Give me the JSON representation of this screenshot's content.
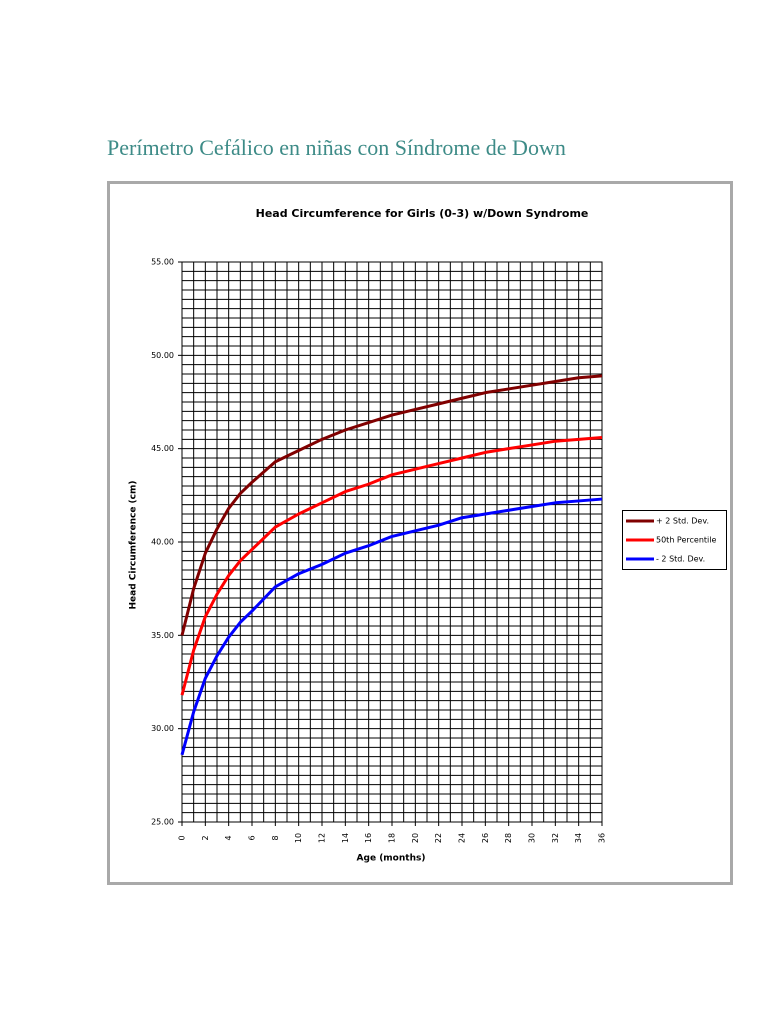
{
  "heading": "Perímetro Cefálico en niñas con Síndrome de Down",
  "chart_data": {
    "type": "line",
    "title": "Head Circumference for Girls (0-3) w/Down Syndrome",
    "x_label": "Age (months)",
    "y_label": "Head Circumference (cm)",
    "x": [
      0,
      1,
      2,
      3,
      4,
      5,
      6,
      8,
      10,
      12,
      14,
      16,
      18,
      20,
      22,
      24,
      26,
      28,
      30,
      32,
      34,
      36
    ],
    "series": [
      {
        "name": "+ 2 Std. Dev.",
        "color": "#800000",
        "values": [
          35.0,
          37.5,
          39.4,
          40.7,
          41.8,
          42.6,
          43.2,
          44.3,
          44.9,
          45.5,
          46.0,
          46.4,
          46.8,
          47.1,
          47.4,
          47.7,
          48.0,
          48.2,
          48.4,
          48.6,
          48.8,
          48.9
        ]
      },
      {
        "name": "50th Percentile",
        "color": "#ff0000",
        "values": [
          31.8,
          34.2,
          36.0,
          37.2,
          38.2,
          39.0,
          39.6,
          40.8,
          41.5,
          42.1,
          42.7,
          43.1,
          43.6,
          43.9,
          44.2,
          44.5,
          44.8,
          45.0,
          45.2,
          45.4,
          45.5,
          45.6
        ]
      },
      {
        "name": "- 2 Std. Dev.",
        "color": "#0000ff",
        "values": [
          28.6,
          30.9,
          32.7,
          33.9,
          34.9,
          35.7,
          36.3,
          37.6,
          38.3,
          38.8,
          39.4,
          39.8,
          40.3,
          40.6,
          40.9,
          41.3,
          41.5,
          41.7,
          41.9,
          42.1,
          42.2,
          42.3
        ]
      }
    ],
    "xlim": [
      0,
      36
    ],
    "xticks": [
      0,
      2,
      4,
      6,
      8,
      10,
      12,
      14,
      16,
      18,
      20,
      22,
      24,
      26,
      28,
      30,
      32,
      34,
      36
    ],
    "ylim": [
      25,
      55
    ],
    "yticks": [
      {
        "value": 25,
        "label": "25.00"
      },
      {
        "value": 30,
        "label": "30.00"
      },
      {
        "value": 35,
        "label": "35.00"
      },
      {
        "value": 40,
        "label": "40.00"
      },
      {
        "value": 45,
        "label": "45.00"
      },
      {
        "value": 50,
        "label": "50.00"
      },
      {
        "value": 55,
        "label": "55.00"
      }
    ],
    "grid": true,
    "x_minor_divisions": 2,
    "y_minor_divisions": 10,
    "legend": "right"
  }
}
